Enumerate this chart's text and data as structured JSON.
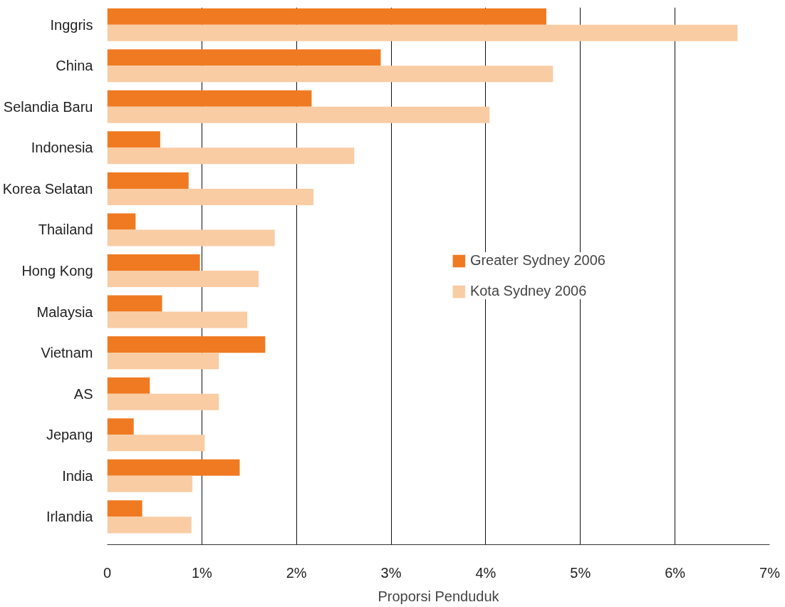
{
  "chart_data": {
    "type": "bar",
    "orientation": "horizontal",
    "xlabel": "Proporsi Penduduk",
    "categories": [
      "Inggris",
      "China",
      "Selandia Baru",
      "Indonesia",
      "Korea Selatan",
      "Thailand",
      "Hong Kong",
      "Malaysia",
      "Vietnam",
      "AS",
      "Jepang",
      "India",
      "Irlandia"
    ],
    "series": [
      {
        "name": "Greater Sydney 2006",
        "color": "#f07a22",
        "values": [
          4.64,
          2.89,
          2.16,
          0.56,
          0.86,
          0.3,
          0.98,
          0.58,
          1.67,
          0.45,
          0.28,
          1.4,
          0.37
        ]
      },
      {
        "name": "Kota Sydney 2006",
        "color": "#f9cca4",
        "values": [
          6.66,
          4.71,
          4.04,
          2.61,
          2.18,
          1.77,
          1.6,
          1.48,
          1.18,
          1.18,
          1.03,
          0.9,
          0.89
        ]
      }
    ],
    "xlim": [
      0,
      7
    ],
    "xticks": [
      0,
      {
        "value": 1,
        "label": "1%"
      },
      {
        "value": 2,
        "label": "2%"
      },
      {
        "value": 3,
        "label": "3%"
      },
      {
        "value": 4,
        "label": "4%"
      },
      {
        "value": 5,
        "label": "5%"
      },
      {
        "value": 6,
        "label": "6%"
      },
      {
        "value": 7,
        "label": "7%"
      }
    ],
    "grid": "x",
    "legend": "right"
  }
}
